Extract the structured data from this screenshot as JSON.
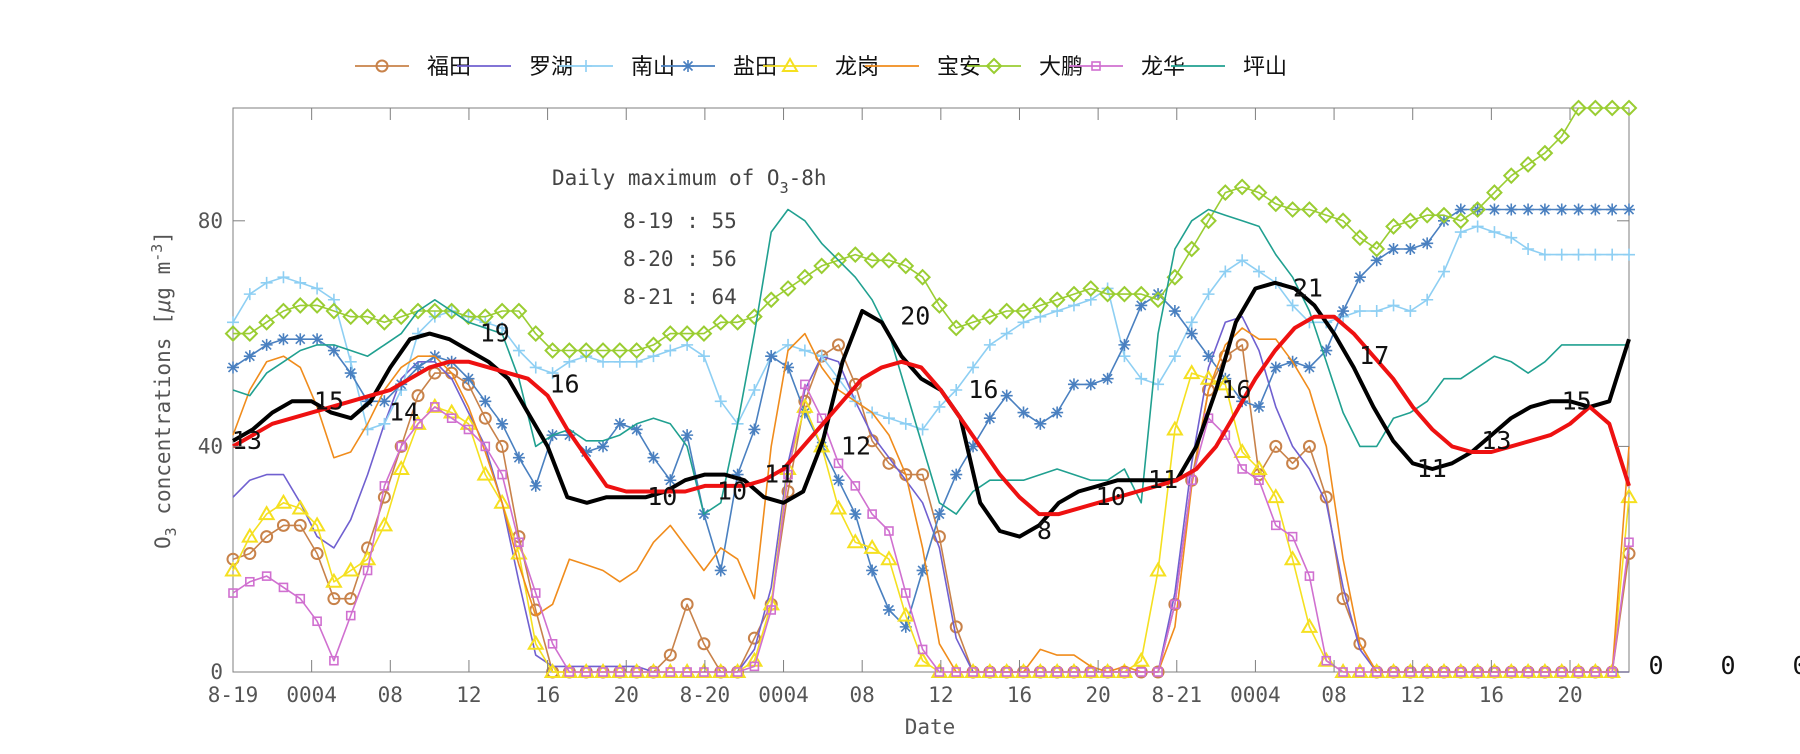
{
  "chart_data": {
    "type": "line",
    "title": "",
    "xlabel": "Date",
    "ylabel": "O3 concentrations [μg m-3]",
    "ylabel_parts": {
      "main": "O",
      "sub": "3",
      "rest": " concentrations [",
      "mu": "μ",
      "unit": "g m",
      "sup": "-3",
      "close": "]"
    },
    "ylim": [
      0,
      100
    ],
    "xlim": [
      0,
      71
    ],
    "y_ticks": [
      0,
      40,
      80
    ],
    "x_ticks": [
      {
        "x": 0,
        "label": "8-19"
      },
      {
        "x": 4,
        "label": "0004"
      },
      {
        "x": 8,
        "label": "08"
      },
      {
        "x": 12,
        "label": "12"
      },
      {
        "x": 16,
        "label": "16"
      },
      {
        "x": 20,
        "label": "20"
      },
      {
        "x": 24,
        "label": "8-20"
      },
      {
        "x": 28,
        "label": "0004"
      },
      {
        "x": 32,
        "label": "08"
      },
      {
        "x": 36,
        "label": "12"
      },
      {
        "x": 40,
        "label": "16"
      },
      {
        "x": 44,
        "label": "20"
      },
      {
        "x": 48,
        "label": "8-21"
      },
      {
        "x": 52,
        "label": "0004"
      },
      {
        "x": 56,
        "label": "08"
      },
      {
        "x": 60,
        "label": "12"
      },
      {
        "x": 64,
        "label": "16"
      },
      {
        "x": 68,
        "label": "20"
      }
    ],
    "right_zeros": [
      "0",
      "0",
      "0"
    ],
    "grid": false,
    "legend_position": "top",
    "annotation": {
      "title_main": "Daily maximum of O",
      "title_sub": "3",
      "title_rest": "-8h",
      "lines": [
        "8-19 : 55",
        "8-20 : 56",
        "8-21 : 64"
      ]
    },
    "series": [
      {
        "name": "福田",
        "color": "#c8824a",
        "marker": "circle",
        "values": [
          20,
          21,
          24,
          26,
          26,
          21,
          13,
          13,
          22,
          31,
          40,
          49,
          53,
          53,
          51,
          45,
          40,
          24,
          11,
          0,
          0,
          0,
          0,
          0,
          0,
          0,
          3,
          12,
          5,
          0,
          0,
          6,
          12,
          32,
          48,
          56,
          58,
          51,
          41,
          37,
          35,
          35,
          24,
          8,
          0,
          0,
          0,
          0,
          0,
          0,
          0,
          0,
          0,
          0,
          0,
          0,
          12,
          34,
          50,
          56,
          58,
          35,
          40,
          37,
          40,
          31,
          13,
          5,
          0,
          0,
          0,
          0,
          0,
          0,
          0,
          0,
          0,
          0,
          0,
          0,
          0,
          0,
          0,
          21
        ]
      },
      {
        "name": "罗湖",
        "color": "#7060d0",
        "marker": "none",
        "values": [
          31,
          34,
          35,
          35,
          30,
          24,
          22,
          27,
          35,
          44,
          52,
          55,
          55,
          52,
          46,
          40,
          30,
          16,
          3,
          1,
          1,
          1,
          1,
          1,
          1,
          0,
          0,
          0,
          0,
          0,
          0,
          4,
          15,
          37,
          50,
          56,
          55,
          48,
          42,
          38,
          34,
          30,
          22,
          6,
          0,
          0,
          0,
          0,
          0,
          0,
          0,
          0,
          0,
          0,
          0,
          0,
          14,
          37,
          54,
          62,
          63,
          57,
          47,
          40,
          36,
          30,
          15,
          4,
          0,
          0,
          0,
          0,
          0,
          0,
          0,
          0,
          0,
          0,
          0,
          0,
          0,
          0,
          0,
          0
        ]
      },
      {
        "name": "南山",
        "color": "#8ecff3",
        "marker": "plus",
        "values": [
          62,
          67,
          69,
          70,
          69,
          68,
          66,
          55,
          43,
          44,
          50,
          60,
          63,
          64,
          63,
          62,
          61,
          57,
          54,
          53,
          55,
          56,
          55,
          55,
          55,
          56,
          57,
          58,
          56,
          48,
          44,
          50,
          56,
          58,
          57,
          56,
          52,
          48,
          46,
          45,
          44,
          43,
          47,
          50,
          54,
          58,
          60,
          62,
          63,
          64,
          65,
          66,
          68,
          56,
          52,
          51,
          56,
          62,
          67,
          71,
          73,
          71,
          69,
          65,
          62,
          62,
          63,
          64,
          64,
          65,
          64,
          66,
          71,
          78,
          79,
          78,
          77,
          75,
          74,
          74,
          74,
          74,
          74,
          74
        ]
      },
      {
        "name": "盐田",
        "color": "#4a80c0",
        "marker": "asterisk",
        "values": [
          54,
          56,
          58,
          59,
          59,
          59,
          57,
          53,
          48,
          48,
          51,
          54,
          56,
          55,
          52,
          48,
          44,
          38,
          33,
          42,
          42,
          39,
          40,
          44,
          43,
          38,
          34,
          42,
          28,
          18,
          35,
          43,
          56,
          54,
          46,
          40,
          34,
          28,
          18,
          11,
          8,
          18,
          28,
          35,
          40,
          45,
          49,
          46,
          44,
          46,
          51,
          51,
          52,
          58,
          65,
          67,
          64,
          60,
          56,
          52,
          48,
          47,
          54,
          55,
          54,
          57,
          64,
          70,
          73,
          75,
          75,
          76,
          80,
          82,
          82,
          82,
          82,
          82,
          82,
          82,
          82,
          82,
          82,
          82
        ]
      },
      {
        "name": "龙岗",
        "color": "#f5e020",
        "marker": "triangle",
        "values": [
          18,
          24,
          28,
          30,
          29,
          26,
          16,
          18,
          20,
          26,
          36,
          44,
          47,
          46,
          44,
          35,
          30,
          21,
          5,
          0,
          0,
          0,
          0,
          0,
          0,
          0,
          0,
          0,
          0,
          0,
          0,
          2,
          12,
          36,
          47,
          40,
          29,
          23,
          22,
          20,
          10,
          2,
          0,
          0,
          0,
          0,
          0,
          0,
          0,
          0,
          0,
          0,
          0,
          0,
          2,
          18,
          43,
          53,
          52,
          51,
          39,
          36,
          31,
          20,
          8,
          2,
          0,
          0,
          0,
          0,
          0,
          0,
          0,
          0,
          0,
          0,
          0,
          0,
          0,
          0,
          0,
          0,
          0,
          31
        ]
      },
      {
        "name": "宝安",
        "color": "#f08c1c",
        "marker": "none",
        "values": [
          42,
          50,
          55,
          56,
          54,
          47,
          38,
          39,
          44,
          50,
          54,
          56,
          56,
          53,
          47,
          39,
          30,
          19,
          10,
          12,
          20,
          19,
          18,
          16,
          18,
          23,
          26,
          22,
          18,
          22,
          20,
          13,
          40,
          57,
          60,
          54,
          50,
          48,
          46,
          42,
          35,
          22,
          5,
          0,
          0,
          0,
          0,
          0,
          4,
          3,
          3,
          1,
          0,
          1,
          0,
          0,
          8,
          33,
          50,
          58,
          61,
          59,
          59,
          55,
          50,
          40,
          20,
          5,
          0,
          0,
          0,
          0,
          0,
          0,
          0,
          0,
          0,
          0,
          0,
          0,
          0,
          0,
          0,
          40
        ]
      },
      {
        "name": "大鹏",
        "color": "#9acd32",
        "marker": "diamond",
        "values": [
          60,
          60,
          62,
          64,
          65,
          65,
          64,
          63,
          63,
          62,
          63,
          64,
          64,
          64,
          63,
          63,
          64,
          64,
          60,
          57,
          57,
          57,
          57,
          57,
          57,
          58,
          60,
          60,
          60,
          62,
          62,
          63,
          66,
          68,
          70,
          72,
          73,
          74,
          73,
          73,
          72,
          70,
          65,
          61,
          62,
          63,
          64,
          64,
          65,
          66,
          67,
          68,
          67,
          67,
          67,
          66,
          70,
          75,
          80,
          85,
          86,
          85,
          83,
          82,
          82,
          81,
          80,
          77,
          75,
          79,
          80,
          81,
          81,
          80,
          82,
          85,
          88,
          90,
          92,
          95,
          100,
          100,
          100,
          100
        ]
      },
      {
        "name": "龙华",
        "color": "#d070d0",
        "marker": "square",
        "values": [
          14,
          16,
          17,
          15,
          13,
          9,
          2,
          10,
          18,
          33,
          40,
          44,
          47,
          45,
          43,
          40,
          35,
          23,
          14,
          5,
          0,
          0,
          0,
          0,
          0,
          0,
          0,
          0,
          0,
          0,
          0,
          1,
          11,
          35,
          51,
          45,
          37,
          33,
          28,
          25,
          14,
          4,
          0,
          0,
          0,
          0,
          0,
          0,
          0,
          0,
          0,
          0,
          0,
          0,
          0,
          0,
          12,
          34,
          45,
          42,
          36,
          34,
          26,
          24,
          17,
          2,
          0,
          0,
          0,
          0,
          0,
          0,
          0,
          0,
          0,
          0,
          0,
          0,
          0,
          0,
          0,
          0,
          0,
          23
        ]
      },
      {
        "name": "坪山",
        "color": "#20a090",
        "marker": "none",
        "values": [
          50,
          49,
          53,
          55,
          57,
          58,
          58,
          57,
          56,
          58,
          60,
          64,
          66,
          64,
          62,
          61,
          60,
          52,
          40,
          42,
          43,
          41,
          41,
          42,
          44,
          45,
          44,
          40,
          28,
          30,
          44,
          60,
          78,
          82,
          80,
          76,
          73,
          70,
          66,
          60,
          50,
          40,
          30,
          28,
          32,
          34,
          34,
          34,
          35,
          36,
          35,
          34,
          34,
          36,
          30,
          60,
          75,
          80,
          82,
          81,
          80,
          79,
          74,
          70,
          64,
          55,
          46,
          40,
          40,
          45,
          46,
          48,
          52,
          52,
          54,
          56,
          55,
          53,
          55,
          58,
          58,
          58,
          58,
          58
        ]
      },
      {
        "name": "",
        "color": "#000000",
        "marker": "none",
        "width": 4,
        "values": [
          41,
          43,
          46,
          48,
          48,
          46,
          45,
          48,
          54,
          59,
          60,
          59,
          57,
          55,
          52,
          46,
          40,
          31,
          30,
          31,
          31,
          31,
          32,
          34,
          35,
          35,
          34,
          31,
          30,
          32,
          41,
          55,
          64,
          62,
          56,
          52,
          50,
          45,
          30,
          25,
          24,
          26,
          30,
          32,
          33,
          34,
          34,
          34,
          34,
          40,
          50,
          62,
          68,
          69,
          68,
          65,
          60,
          54,
          47,
          41,
          37,
          36,
          37,
          39,
          42,
          45,
          47,
          48,
          48,
          47,
          48,
          59
        ]
      },
      {
        "name": "",
        "color": "#ee1111",
        "marker": "none",
        "width": 4,
        "values": [
          40,
          42,
          44,
          45,
          46,
          47,
          48,
          49,
          50,
          52,
          54,
          55,
          55,
          54,
          53,
          52,
          49,
          43,
          38,
          33,
          32,
          32,
          32,
          32,
          33,
          33,
          33,
          34,
          36,
          40,
          44,
          48,
          52,
          54,
          55,
          54,
          50,
          45,
          40,
          35,
          31,
          28,
          28,
          29,
          30,
          31,
          32,
          33,
          34,
          36,
          40,
          46,
          52,
          57,
          61,
          63,
          63,
          60,
          56,
          52,
          47,
          43,
          40,
          39,
          39,
          40,
          41,
          42,
          44,
          47,
          44,
          33
        ]
      }
    ],
    "point_labels": [
      {
        "x": 0.8,
        "y": 41,
        "text": "13"
      },
      {
        "x": 5.5,
        "y": 48,
        "text": "15"
      },
      {
        "x": 9.8,
        "y": 46,
        "text": "14"
      },
      {
        "x": 15.0,
        "y": 60,
        "text": "19"
      },
      {
        "x": 19.0,
        "y": 51,
        "text": "16"
      },
      {
        "x": 24.6,
        "y": 31,
        "text": "10"
      },
      {
        "x": 28.6,
        "y": 32,
        "text": "10"
      },
      {
        "x": 31.3,
        "y": 35,
        "text": "11"
      },
      {
        "x": 35.7,
        "y": 40,
        "text": "12"
      },
      {
        "x": 39.1,
        "y": 63,
        "text": "20"
      },
      {
        "x": 43.0,
        "y": 50,
        "text": "16"
      },
      {
        "x": 46.5,
        "y": 25,
        "text": "8"
      },
      {
        "x": 50.3,
        "y": 31,
        "text": "10"
      },
      {
        "x": 53.3,
        "y": 34,
        "text": "11"
      },
      {
        "x": 57.5,
        "y": 50,
        "text": "16"
      },
      {
        "x": 61.6,
        "y": 68,
        "text": "21"
      },
      {
        "x": 65.4,
        "y": 56,
        "text": "17"
      },
      {
        "x": 68.7,
        "y": 36,
        "text": "11"
      },
      {
        "x": 72.4,
        "y": 41,
        "text": "13"
      },
      {
        "x": 77.0,
        "y": 48,
        "text": "15"
      }
    ]
  }
}
